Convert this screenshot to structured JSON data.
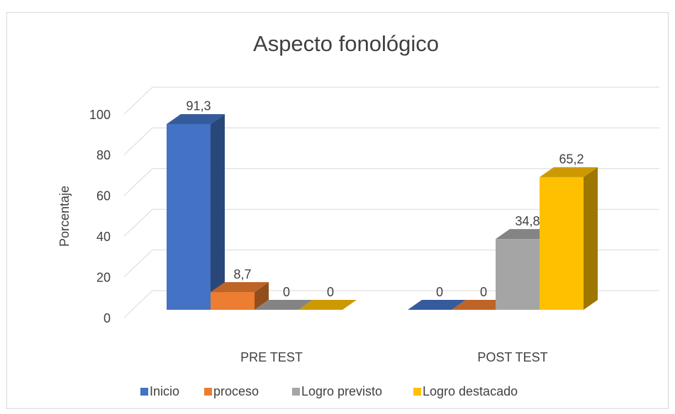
{
  "chart_data": {
    "type": "bar3d",
    "title": "Aspecto fonológico",
    "y_label": "Porcentaje",
    "categories": [
      "PRE TEST",
      "POST TEST"
    ],
    "series": [
      {
        "name": "Inicio",
        "color": "#4472c4",
        "values": [
          91.3,
          0
        ],
        "value_labels": [
          "91,3",
          "0"
        ]
      },
      {
        "name": "proceso",
        "color": "#ed7d31",
        "values": [
          8.7,
          0
        ],
        "value_labels": [
          "8,7",
          "0"
        ]
      },
      {
        "name": "Logro previsto",
        "color": "#a5a5a5",
        "values": [
          0,
          34.8
        ],
        "value_labels": [
          "0",
          "34,8"
        ]
      },
      {
        "name": "Logro destacado",
        "color": "#ffc000",
        "values": [
          0,
          65.2
        ],
        "value_labels": [
          "0",
          "65,2"
        ]
      }
    ],
    "ylim": [
      0,
      100
    ],
    "yticks": [
      0,
      20,
      40,
      60,
      80,
      100
    ],
    "grid": true,
    "legend": "bottom"
  }
}
